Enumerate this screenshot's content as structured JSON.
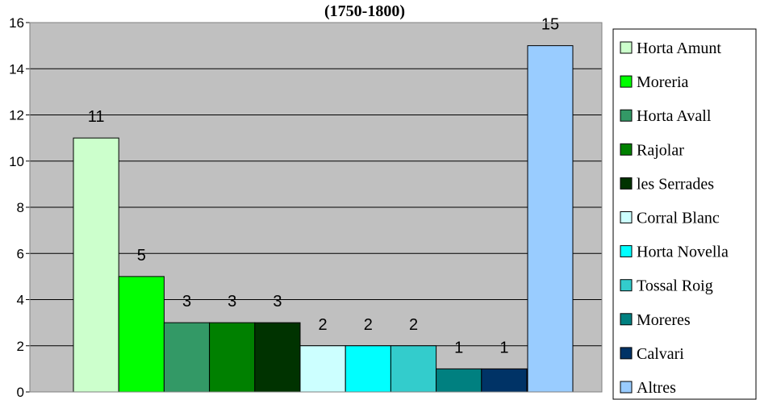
{
  "chart_data": {
    "type": "bar",
    "title": "(1750-1800)",
    "xlabel": "",
    "ylabel": "",
    "ylim": [
      0,
      16
    ],
    "yticks": [
      0,
      2,
      4,
      6,
      8,
      10,
      12,
      14,
      16
    ],
    "grid": true,
    "legend_position": "right",
    "background": "#c0c0c0",
    "categories": [
      "Horta Amunt",
      "Moreria",
      "Horta Avall",
      "Rajolar",
      "les Serrades",
      "Corral Blanc",
      "Horta Novella",
      "Tossal Roig",
      "Moreres",
      "Calvari",
      "Altres"
    ],
    "values": [
      11,
      5,
      3,
      3,
      3,
      2,
      2,
      2,
      1,
      1,
      15
    ],
    "colors": [
      "#ccffcc",
      "#00ff00",
      "#339966",
      "#008000",
      "#003300",
      "#ccffff",
      "#00ffff",
      "#33cccc",
      "#008080",
      "#003366",
      "#99ccff"
    ],
    "data_labels": [
      "11",
      "5",
      "3",
      "3",
      "3",
      "2",
      "2",
      "2",
      "1",
      "1",
      "15"
    ]
  }
}
